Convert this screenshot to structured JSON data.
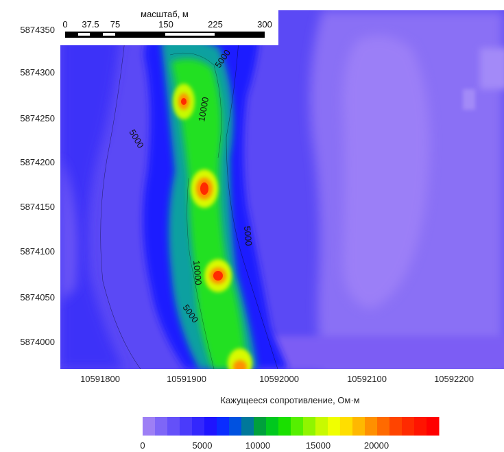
{
  "map": {
    "y_axis": {
      "ticks": [
        "5874350",
        "5874300",
        "5874250",
        "5874200",
        "5874150",
        "5874100",
        "5874050",
        "5874000"
      ]
    },
    "x_axis": {
      "ticks": [
        "10591800",
        "10591900",
        "10592000",
        "10592100",
        "10592200"
      ]
    },
    "contour_labels": [
      "5000",
      "10000",
      "5000",
      "10000",
      "5000",
      "10000",
      "5000"
    ],
    "colors": {
      "low": "#9b7df2",
      "mid_blue": "#1f2fff",
      "high_green": "#1fe020",
      "peak": "#ff2a00"
    }
  },
  "scale_bar": {
    "title": "масштаб, м",
    "labels": [
      "0",
      "37.5",
      "75",
      "150",
      "225",
      "300"
    ]
  },
  "legend": {
    "title": "Кажущееся сопротивление, Ом·м",
    "ticks": [
      "0",
      "5000",
      "10000",
      "15000",
      "20000"
    ],
    "swatch_colors": [
      "#9d7ff5",
      "#7e66f7",
      "#6450f9",
      "#4a3bfb",
      "#3327fd",
      "#1e14ff",
      "#0a2cff",
      "#0051e0",
      "#00789a",
      "#00a03c",
      "#00c81e",
      "#1ae000",
      "#55f000",
      "#90f500",
      "#c8fa00",
      "#f0ff00",
      "#ffde00",
      "#ffb800",
      "#ff9000",
      "#ff6a00",
      "#ff4400",
      "#ff2a00",
      "#ff1400",
      "#ff0000"
    ]
  }
}
